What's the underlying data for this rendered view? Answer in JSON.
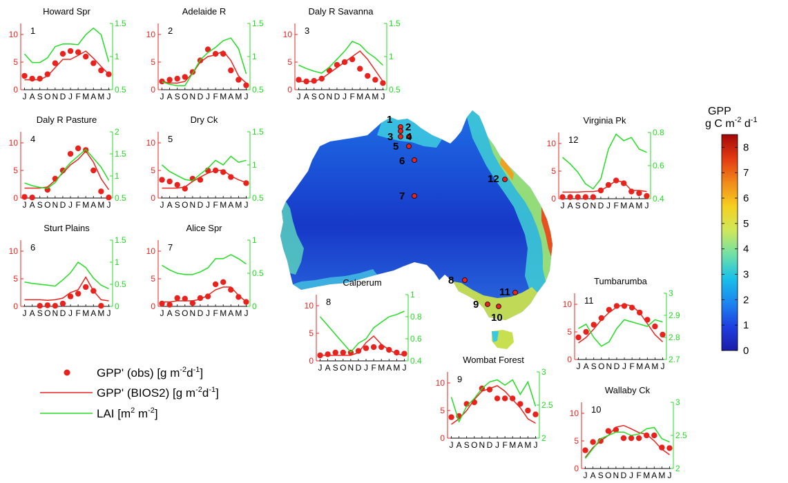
{
  "month_ticks": "JASONDJFMAMJ",
  "colors": {
    "obs": "#e8231d",
    "model": "#e8231d",
    "lai": "#22dd22",
    "axis": "#000000"
  },
  "chart_data": [
    {
      "type": "line",
      "title": "Howard Spr",
      "site_number": "1",
      "ylim": [
        0,
        12
      ],
      "yticks": [
        0,
        5,
        10
      ],
      "y2lim": [
        0.5,
        1.5
      ],
      "y2ticks": [
        "0.5",
        "1",
        "1.5"
      ],
      "series": [
        {
          "role": "obs",
          "values": [
            2.5,
            2,
            2,
            2.8,
            4.8,
            6.5,
            7,
            6.8,
            6,
            4.8,
            3.5,
            2.8
          ]
        },
        {
          "role": "model",
          "values": [
            1.8,
            1.8,
            1.8,
            2.5,
            4,
            5.5,
            5.5,
            6.2,
            7,
            5.7,
            4.2,
            2.8
          ]
        },
        {
          "role": "lai",
          "values": [
            1.04,
            0.91,
            0.91,
            0.98,
            1.15,
            1.19,
            1.19,
            1.18,
            1.33,
            1.43,
            1.33,
            0.92
          ]
        }
      ]
    },
    {
      "type": "line",
      "title": "Adelaide R",
      "site_number": "2",
      "ylim": [
        0,
        12
      ],
      "yticks": [
        0,
        5,
        10
      ],
      "y2lim": [
        0.5,
        1.5
      ],
      "y2ticks": [
        "0.5",
        "1",
        "1.5"
      ],
      "series": [
        {
          "role": "obs",
          "values": [
            1.5,
            1.8,
            2,
            2.3,
            3.2,
            5.3,
            7.3,
            6.5,
            6.5,
            3.5,
            1.8,
            0.8
          ]
        },
        {
          "role": "model",
          "values": [
            1.5,
            1.2,
            1.2,
            1.5,
            3,
            5,
            6,
            6.3,
            7,
            5.3,
            2.5,
            1.2
          ]
        },
        {
          "role": "lai",
          "values": [
            0.62,
            0.58,
            0.56,
            0.56,
            0.75,
            0.95,
            1.06,
            1.14,
            1.24,
            1.28,
            1.12,
            0.74
          ]
        }
      ]
    },
    {
      "type": "line",
      "title": "Daly R Savanna",
      "site_number": "3",
      "ylim": [
        0,
        12
      ],
      "yticks": [
        0,
        5,
        10
      ],
      "y2lim": [
        0.5,
        1.5
      ],
      "y2ticks": [
        "0.5",
        "1",
        "1.5"
      ],
      "series": [
        {
          "role": "obs",
          "values": [
            1.8,
            1.5,
            1.6,
            2,
            3.5,
            4.5,
            5,
            5.5,
            3.8,
            2.5,
            1.8,
            1.2
          ]
        },
        {
          "role": "model",
          "values": [
            1.5,
            1.5,
            1.5,
            2,
            3,
            4,
            5,
            6,
            7,
            5.5,
            3.5,
            1.5
          ]
        },
        {
          "role": "lai",
          "values": [
            0.87,
            0.82,
            0.78,
            0.75,
            0.84,
            0.96,
            1.08,
            1.23,
            1.18,
            1.06,
            0.98,
            0.87
          ]
        }
      ]
    },
    {
      "type": "line",
      "title": "Daly R Pasture",
      "site_number": "4",
      "ylim": [
        0,
        12
      ],
      "yticks": [
        0,
        5,
        10
      ],
      "y2lim": [
        0.5,
        2
      ],
      "y2ticks": [
        "0.5",
        "1",
        "1.5",
        "2"
      ],
      "series": [
        {
          "role": "obs",
          "values": [
            0.2,
            0.1,
            null,
            1.5,
            3.5,
            5,
            8,
            9,
            8.7,
            5,
            1.2,
            0.1
          ]
        },
        {
          "role": "model",
          "values": [
            1.8,
            1.8,
            1.8,
            2,
            3.2,
            4.5,
            6,
            7,
            8.5,
            6.5,
            3.5,
            1.5
          ]
        },
        {
          "role": "lai",
          "values": [
            0.84,
            0.78,
            0.74,
            0.72,
            0.85,
            1.1,
            1.3,
            1.45,
            1.6,
            1.4,
            1.2,
            0.9
          ]
        }
      ]
    },
    {
      "type": "line",
      "title": "Dry Ck",
      "site_number": "5",
      "ylim": [
        0,
        12
      ],
      "yticks": [
        0,
        5,
        10
      ],
      "y2lim": [
        0.5,
        1.5
      ],
      "y2ticks": [
        "0.5",
        "1",
        "1.5"
      ],
      "series": [
        {
          "role": "obs",
          "values": [
            3.3,
            3,
            2.4,
            1.7,
            3.5,
            3.3,
            5,
            5,
            4.7,
            3.8,
            null,
            2.7
          ]
        },
        {
          "role": "model",
          "values": [
            1.8,
            1.8,
            1.8,
            2,
            3,
            3.8,
            4.5,
            5,
            5,
            4,
            3.3,
            2.8
          ]
        },
        {
          "role": "lai",
          "values": [
            1,
            0.9,
            0.84,
            0.78,
            0.76,
            0.86,
            0.95,
            1.07,
            1,
            1.13,
            1.04,
            1.07
          ]
        }
      ]
    },
    {
      "type": "line",
      "title": "Sturt Plains",
      "site_number": "6",
      "ylim": [
        0,
        12
      ],
      "yticks": [
        0,
        5,
        10
      ],
      "y2lim": [
        0,
        1.5
      ],
      "y2ticks": [
        "0",
        "0.5",
        "1",
        "1.5"
      ],
      "series": [
        {
          "role": "obs",
          "values": [
            null,
            null,
            0.1,
            0.2,
            0.1,
            0.5,
            1.8,
            2.3,
            3.5,
            2.8,
            0.1,
            null
          ]
        },
        {
          "role": "model",
          "values": [
            1.2,
            1.2,
            1.2,
            1.1,
            1.2,
            1.5,
            2.5,
            3,
            5.3,
            2.8,
            1.2,
            1
          ]
        },
        {
          "role": "lai",
          "values": [
            0.55,
            0.52,
            0.5,
            0.48,
            0.46,
            0.6,
            0.76,
            1,
            0.88,
            0.64,
            0.48,
            0.4
          ]
        }
      ]
    },
    {
      "type": "line",
      "title": "Alice Spr",
      "site_number": "7",
      "ylim": [
        0,
        12
      ],
      "yticks": [
        0,
        5,
        10
      ],
      "y2lim": [
        0,
        1
      ],
      "y2ticks": [
        "0",
        "0.5",
        "1"
      ],
      "series": [
        {
          "role": "obs",
          "values": [
            0.5,
            0.3,
            1.5,
            1.4,
            0.6,
            1.5,
            1.8,
            4,
            4.4,
            3,
            1.7,
            0.8
          ]
        },
        {
          "role": "model",
          "values": [
            0.8,
            0.8,
            1,
            1,
            1,
            1.3,
            2,
            3,
            3.5,
            3.5,
            2,
            0.8
          ]
        },
        {
          "role": "lai",
          "values": [
            0.62,
            0.55,
            0.5,
            0.48,
            0.48,
            0.52,
            0.58,
            0.72,
            0.72,
            0.78,
            0.72,
            0.64
          ]
        }
      ]
    },
    {
      "type": "line",
      "title": "Virginia Pk",
      "site_number": "12",
      "ylim": [
        0,
        12
      ],
      "yticks": [
        0,
        5,
        10
      ],
      "y2lim": [
        0.4,
        0.8
      ],
      "y2ticks": [
        "0.4",
        "0.6",
        "0.8"
      ],
      "series": [
        {
          "role": "obs",
          "values": [
            0.3,
            0.3,
            0.3,
            0.3,
            0.3,
            1.5,
            2.5,
            3.3,
            2.8,
            1.3,
            1,
            0.5
          ]
        },
        {
          "role": "model",
          "values": [
            1.2,
            1.2,
            1.2,
            1.3,
            1.3,
            1.5,
            2.3,
            3.3,
            3,
            1.5,
            1.5,
            1.3
          ]
        },
        {
          "role": "lai",
          "values": [
            0.65,
            0.61,
            0.56,
            0.49,
            0.46,
            0.52,
            0.7,
            0.79,
            0.75,
            0.77,
            0.7,
            0.68
          ]
        }
      ]
    },
    {
      "type": "line",
      "title": "Calperum",
      "site_number": "8",
      "ylim": [
        0,
        12
      ],
      "yticks": [
        0,
        5,
        10
      ],
      "y2lim": [
        0.4,
        1
      ],
      "y2ticks": [
        "0.4",
        "0.6",
        "0.8",
        "1"
      ],
      "series": [
        {
          "role": "obs",
          "values": [
            1,
            1.2,
            1.5,
            1.5,
            1.5,
            1.8,
            2.3,
            2.5,
            2.5,
            2,
            1.5,
            1.3
          ]
        },
        {
          "role": "model",
          "values": [
            1,
            1,
            1,
            1,
            1,
            1.5,
            3.3,
            4.5,
            3,
            2,
            1.3,
            1
          ]
        },
        {
          "role": "lai",
          "values": [
            0.8,
            0.72,
            0.64,
            0.56,
            0.48,
            0.56,
            0.6,
            0.7,
            0.75,
            0.8,
            0.82,
            0.85
          ]
        }
      ]
    },
    {
      "type": "line",
      "title": "Tumbarumba",
      "site_number": "11",
      "ylim": [
        0,
        12
      ],
      "yticks": [
        0,
        5,
        10
      ],
      "y2lim": [
        2.7,
        3
      ],
      "y2ticks": [
        "2.7",
        "2.8",
        "2.9",
        "3"
      ],
      "series": [
        {
          "role": "obs",
          "values": [
            4,
            5,
            6.3,
            7.5,
            9,
            9.7,
            9.7,
            9.4,
            8.5,
            7.2,
            6,
            4.5
          ]
        },
        {
          "role": "model",
          "values": [
            3,
            4,
            5.5,
            7.2,
            8.5,
            9.5,
            10,
            9.7,
            8.5,
            6.5,
            4.5,
            3.2
          ]
        },
        {
          "role": "lai",
          "values": [
            2.84,
            2.86,
            2.8,
            2.76,
            2.78,
            2.84,
            2.88,
            2.87,
            2.86,
            2.85,
            2.88,
            2.87
          ]
        }
      ]
    },
    {
      "type": "line",
      "title": "Wombat Forest",
      "site_number": "9",
      "ylim": [
        0,
        12
      ],
      "yticks": [
        0,
        5,
        10
      ],
      "y2lim": [
        2,
        3
      ],
      "y2ticks": [
        "2",
        "2.5",
        "3"
      ],
      "series": [
        {
          "role": "obs",
          "values": [
            3.8,
            4,
            6.2,
            6.5,
            9,
            8.8,
            7.2,
            7.2,
            7.2,
            6.2,
            5,
            4.3
          ]
        },
        {
          "role": "model",
          "values": [
            2.5,
            3.5,
            5,
            7,
            8.5,
            9,
            9.5,
            8.5,
            7,
            5.5,
            3.5,
            2.7
          ]
        },
        {
          "role": "lai",
          "values": [
            2.62,
            2.25,
            2.48,
            2.6,
            2.75,
            2.85,
            2.88,
            2.8,
            2.88,
            2.66,
            2.85,
            2.48
          ]
        }
      ]
    },
    {
      "type": "line",
      "title": "Wallaby Ck",
      "site_number": "10",
      "ylim": [
        0,
        12
      ],
      "yticks": [
        0,
        5,
        10
      ],
      "y2lim": [
        2,
        3
      ],
      "y2ticks": [
        "2",
        "2.5",
        "3"
      ],
      "series": [
        {
          "role": "obs",
          "values": [
            3.3,
            4.8,
            5,
            6.8,
            7,
            5.5,
            5.5,
            5.5,
            6,
            6,
            3.8,
            3.7
          ]
        },
        {
          "role": "model",
          "values": [
            2,
            3.8,
            5,
            6,
            7.5,
            7.8,
            7.2,
            6.5,
            6.2,
            5,
            3.5,
            2.5
          ]
        },
        {
          "role": "lai",
          "values": [
            2.15,
            2.3,
            2.45,
            2.5,
            2.55,
            2.55,
            2.5,
            2.52,
            2.6,
            2.62,
            2.45,
            2.4
          ]
        }
      ]
    }
  ],
  "map": {
    "sites": [
      {
        "label": "1"
      },
      {
        "label": "2"
      },
      {
        "label": "3"
      },
      {
        "label": "4"
      },
      {
        "label": "5"
      },
      {
        "label": "6"
      },
      {
        "label": "7"
      },
      {
        "label": "8"
      },
      {
        "label": "9"
      },
      {
        "label": "10"
      },
      {
        "label": "11"
      },
      {
        "label": "12"
      }
    ]
  },
  "colorbar": {
    "title_line1": "GPP",
    "title_line2_prefix": "g C m",
    "title_line2_sup1": "-2",
    "title_line2_mid": " d",
    "title_line2_sup2": "-1",
    "ticks": [
      "0",
      "1",
      "2",
      "3",
      "4",
      "5",
      "6",
      "7",
      "8"
    ],
    "range": [
      0,
      8.5
    ],
    "stops": [
      "#1a1aa8",
      "#1f3fe0",
      "#1b86f0",
      "#18c0e8",
      "#6fe0a8",
      "#cfe85a",
      "#f5d020",
      "#f08a18",
      "#e33a12",
      "#a30808"
    ]
  },
  "legend": {
    "obs": {
      "prefix": "GPP' (obs) [g m",
      "sup1": "-2",
      "mid": "d",
      "sup2": "-1",
      "suffix": "]"
    },
    "model": {
      "prefix": "GPP' (BIOS2) [g m",
      "sup1": "-2",
      "mid": "d",
      "sup2": "-1",
      "suffix": "]"
    },
    "lai": {
      "prefix": "LAI [m",
      "sup1": "2",
      "mid": " m",
      "sup2": "-2",
      "suffix": "]"
    }
  }
}
